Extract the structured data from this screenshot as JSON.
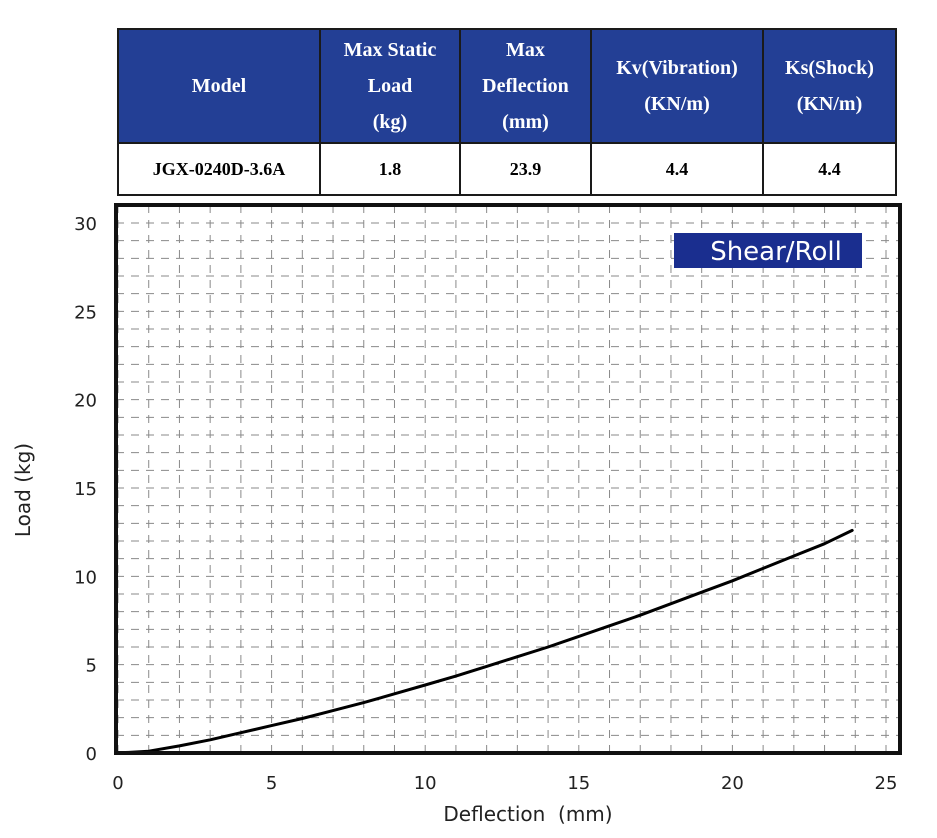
{
  "spec_table": {
    "headers": [
      [
        "Model"
      ],
      [
        "Max Static",
        "Load",
        "(kg)"
      ],
      [
        "Max",
        "Deflection",
        "(mm)"
      ],
      [
        "Kv(Vibration)",
        "(KN/m)"
      ],
      [
        "Ks(Shock)",
        "(KN/m)"
      ]
    ],
    "row": {
      "model": "JGX-0240D-3.6A",
      "max_static_load": "1.8",
      "max_deflection": "23.9",
      "kv": "4.4",
      "ks": "4.4"
    },
    "header_color": "#233f95"
  },
  "chart_data": {
    "type": "line",
    "title": "Shear/Roll",
    "xlabel": "Deflection  (mm)",
    "ylabel": "Load (kg)",
    "xlim": [
      0,
      25
    ],
    "ylim": [
      0,
      30
    ],
    "xticks": [
      "0",
      "5",
      "10",
      "15",
      "20",
      "25"
    ],
    "yticks": [
      "0",
      "5",
      "10",
      "15",
      "20",
      "25",
      "30"
    ],
    "grid": true,
    "legend_position": "top-right",
    "title_box_color": "#1a2e8f",
    "line_color": "#000000",
    "series": [
      {
        "x": [
          0,
          1,
          2,
          3,
          4,
          5,
          6,
          7,
          8,
          9,
          10,
          11,
          12,
          13,
          14,
          15,
          16,
          17,
          18,
          19,
          20,
          21,
          22,
          23,
          23.9
        ],
        "y": [
          0,
          0.1,
          0.4,
          0.75,
          1.15,
          1.55,
          1.95,
          2.4,
          2.85,
          3.35,
          3.85,
          4.35,
          4.9,
          5.45,
          6.0,
          6.6,
          7.2,
          7.8,
          8.45,
          9.1,
          9.75,
          10.45,
          11.15,
          11.85,
          12.6
        ]
      }
    ]
  }
}
